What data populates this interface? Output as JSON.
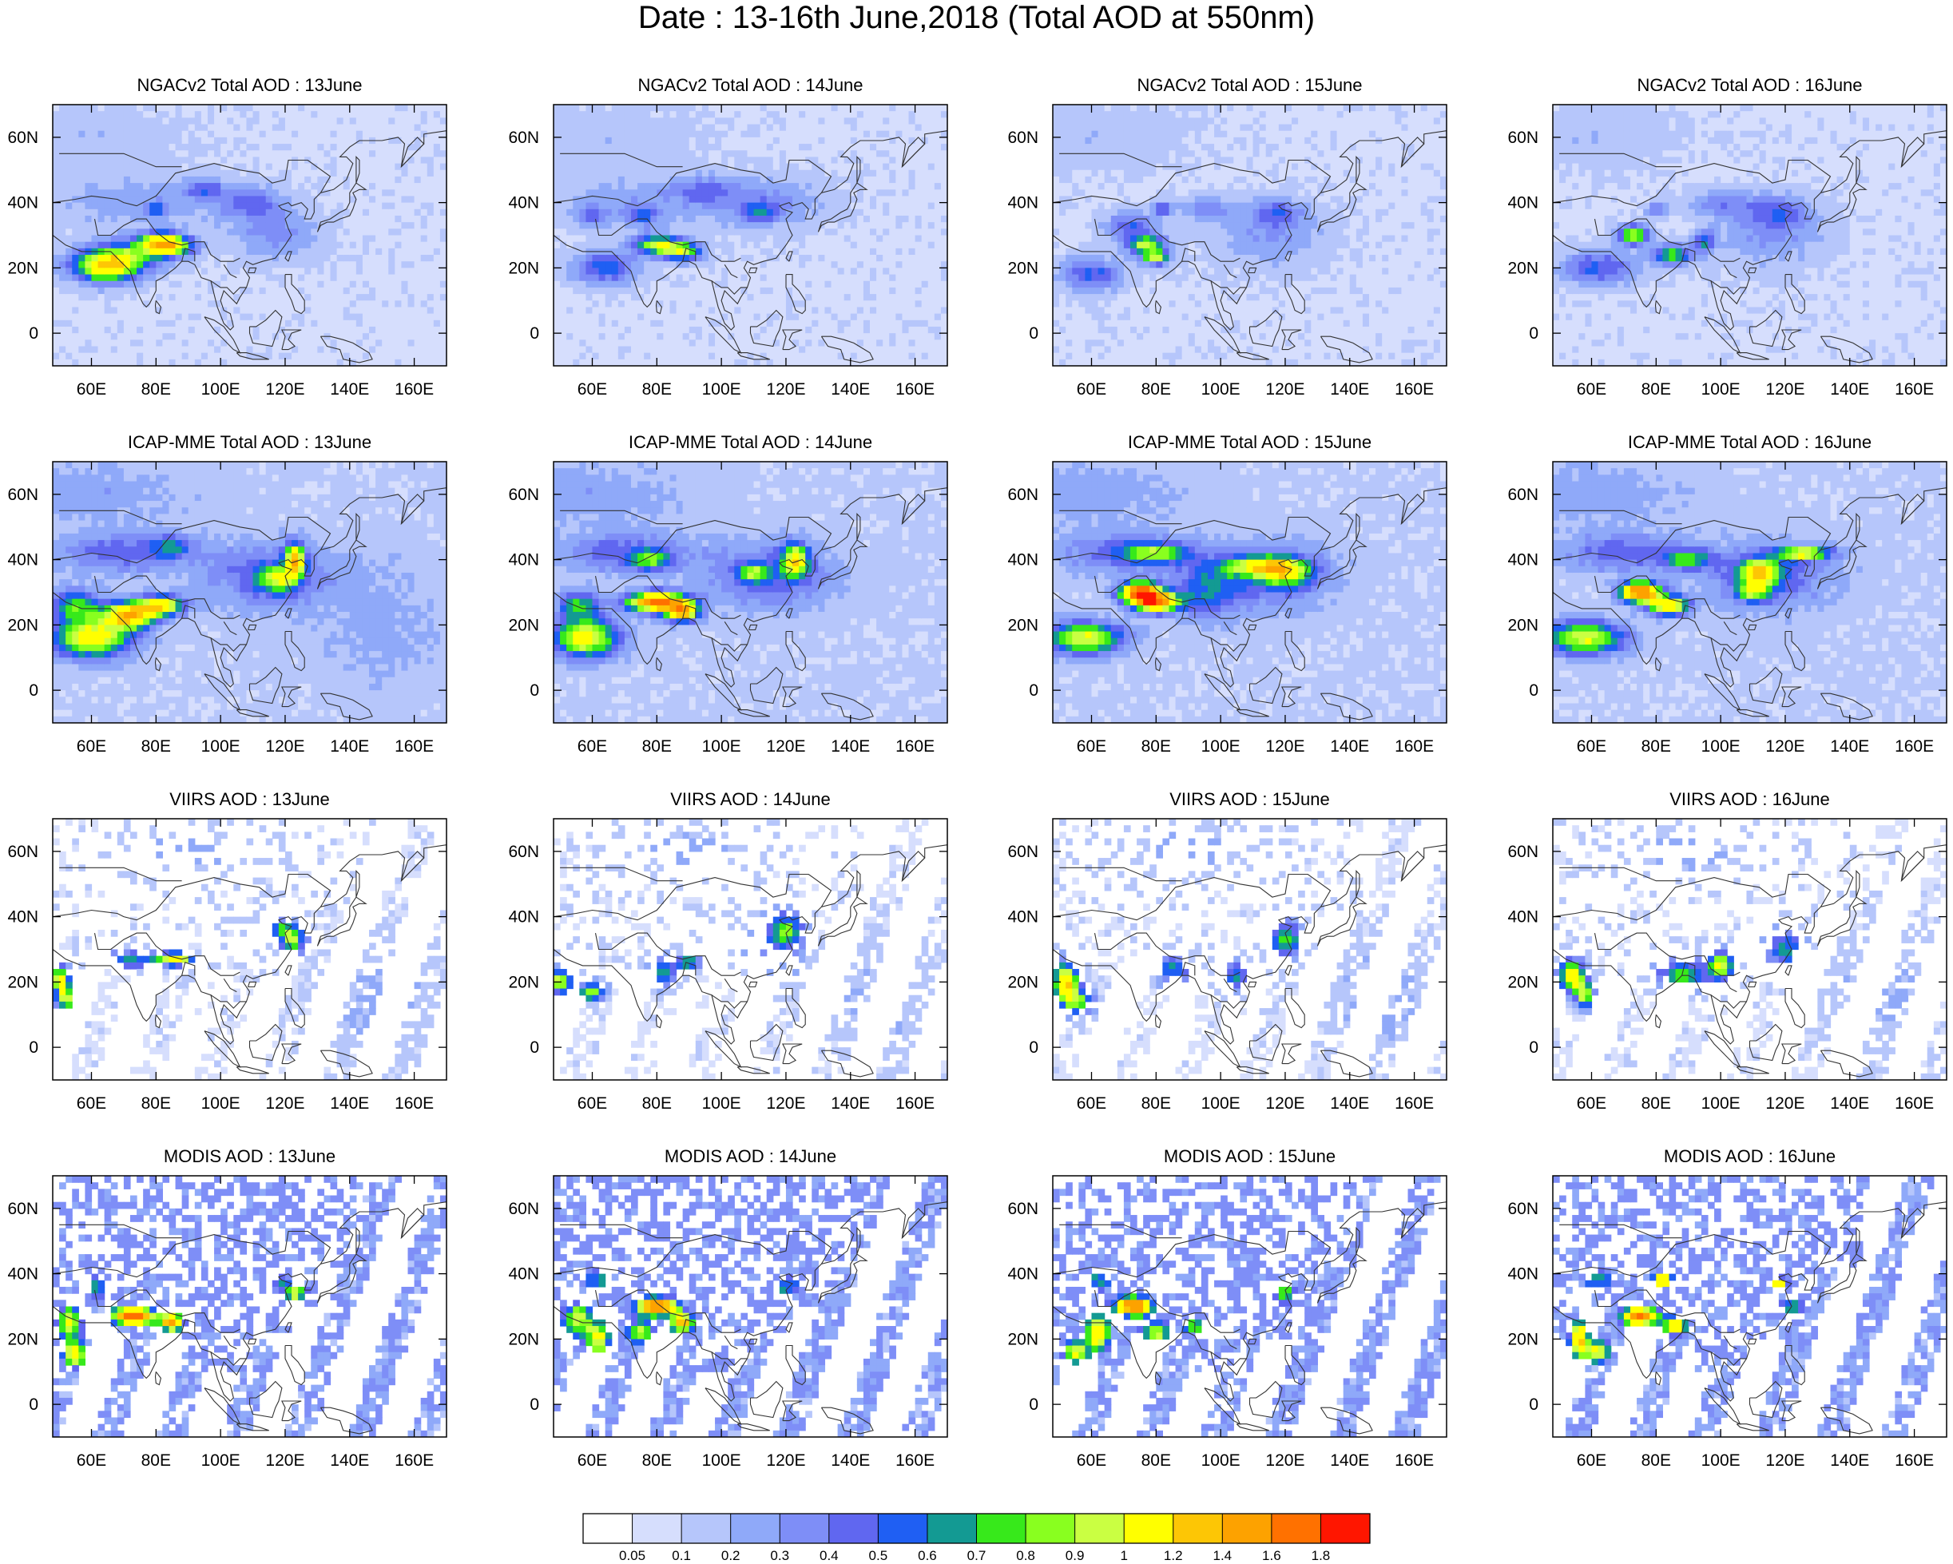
{
  "title": "Date : 13-16th June,2018 (Total AOD at 550nm)",
  "chart_data": {
    "type": "heatmap",
    "panels": [
      {
        "title": "NGACv2 Total AOD : 13June"
      },
      {
        "title": "NGACv2 Total AOD : 14June"
      },
      {
        "title": "NGACv2 Total AOD : 15June"
      },
      {
        "title": "NGACv2 Total AOD : 16June"
      },
      {
        "title": "ICAP-MME Total AOD : 13June"
      },
      {
        "title": "ICAP-MME Total AOD : 14June"
      },
      {
        "title": "ICAP-MME Total AOD : 15June"
      },
      {
        "title": "ICAP-MME Total AOD : 16June"
      },
      {
        "title": "VIIRS AOD : 13June"
      },
      {
        "title": "VIIRS AOD : 14June"
      },
      {
        "title": "VIIRS AOD : 15June"
      },
      {
        "title": "VIIRS AOD : 16June"
      },
      {
        "title": "MODIS AOD : 13June"
      },
      {
        "title": "MODIS AOD : 14June"
      },
      {
        "title": "MODIS AOD : 15June"
      },
      {
        "title": "MODIS AOD : 16June"
      }
    ],
    "x_range": [
      48,
      170
    ],
    "y_range": [
      -10,
      70
    ],
    "x_ticks": [
      {
        "value": 60,
        "label": "60E"
      },
      {
        "value": 80,
        "label": "80E"
      },
      {
        "value": 100,
        "label": "100E"
      },
      {
        "value": 120,
        "label": "120E"
      },
      {
        "value": 140,
        "label": "140E"
      },
      {
        "value": 160,
        "label": "160E"
      }
    ],
    "y_ticks": [
      {
        "value": 0,
        "label": "0"
      },
      {
        "value": 20,
        "label": "20N"
      },
      {
        "value": 40,
        "label": "40N"
      },
      {
        "value": 60,
        "label": "60N"
      }
    ],
    "colorbar": {
      "colors": [
        "#ffffff",
        "#d6defd",
        "#b6c6fb",
        "#8fa9f9",
        "#7e8ef7",
        "#6067f0",
        "#1f5ff3",
        "#139a93",
        "#37e91b",
        "#89ff1f",
        "#caff42",
        "#ffff00",
        "#fdc605",
        "#fda200",
        "#ff7100",
        "#ff1600"
      ],
      "labels": [
        "0.05",
        "0.1",
        "0.2",
        "0.3",
        "0.4",
        "0.5",
        "0.6",
        "0.7",
        "0.8",
        "0.9",
        "1",
        "1.2",
        "1.4",
        "1.6",
        "1.8"
      ]
    }
  }
}
